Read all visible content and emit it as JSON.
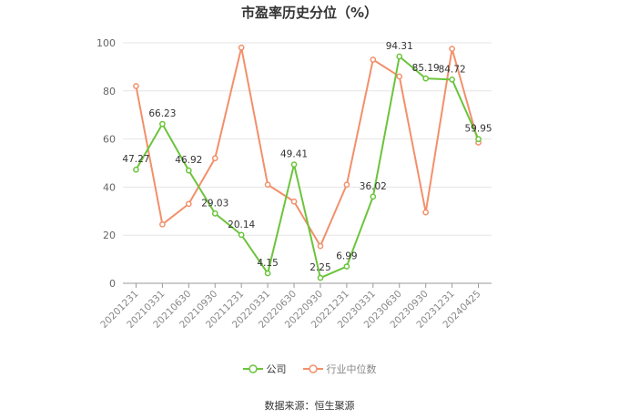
{
  "chart_data": {
    "type": "line",
    "title": "市盈率历史分位（%）",
    "xlabel": "",
    "ylabel": "",
    "ylim": [
      0,
      100
    ],
    "yticks": [
      0,
      20,
      40,
      60,
      80,
      100
    ],
    "grid": true,
    "legend_position": "bottom",
    "categories": [
      "20201231",
      "20210331",
      "20210630",
      "20210930",
      "20211231",
      "20220331",
      "20220630",
      "20220930",
      "20221231",
      "20230331",
      "20230630",
      "20230930",
      "20231231",
      "20240425"
    ],
    "series": [
      {
        "name": "公司",
        "color": "#6cc43c",
        "values": [
          47.27,
          66.23,
          46.92,
          29.03,
          20.14,
          4.15,
          49.41,
          2.25,
          6.99,
          36.02,
          94.31,
          85.19,
          84.72,
          59.95
        ],
        "labels": [
          "47.27",
          "66.23",
          "46.92",
          "29.03",
          "20.14",
          "4.15",
          "49.41",
          "2.25",
          "6.99",
          "36.02",
          "94.31",
          "85.19",
          "84.72",
          "59.95"
        ]
      },
      {
        "name": "行业中位数",
        "color": "#f2906b",
        "values": [
          82,
          24.5,
          33,
          52,
          98,
          41,
          34,
          15.5,
          41,
          93,
          86,
          29.5,
          97.5,
          58.5
        ]
      }
    ]
  },
  "source": "数据来源：恒生聚源"
}
